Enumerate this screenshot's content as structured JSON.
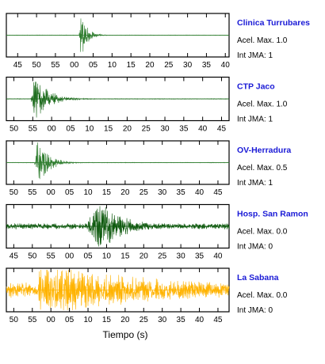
{
  "chart_data": {
    "type": "line",
    "xlabel": "Tiempo (s)",
    "series": [
      {
        "name": "Clinica Turrubares",
        "info1": "Acel. Max. 1.0",
        "info2": "Int JMA: 1",
        "color": "#2e7d2e",
        "x_start_sec": 42,
        "x_span_sec": 59,
        "tick_labels": [
          "45",
          "50",
          "55",
          "00",
          "05",
          "10",
          "15",
          "20",
          "25",
          "30",
          "35",
          "40"
        ],
        "burst_sec": 61.7,
        "amplitude": 1.0,
        "noise": 0.01,
        "decay_sec": 1.6,
        "onset_sec": 0.4
      },
      {
        "name": "CTP Jaco",
        "info1": "Acel. Max. 1.0",
        "info2": "Int JMA: 1",
        "color": "#1c6b1c",
        "x_start_sec": 48,
        "x_span_sec": 59,
        "tick_labels": [
          "50",
          "55",
          "00",
          "05",
          "10",
          "15",
          "20",
          "25",
          "30",
          "35",
          "40",
          "45"
        ],
        "burst_sec": 55.5,
        "amplitude": 1.0,
        "noise": 0.012,
        "decay_sec": 3.5,
        "onset_sec": 1.0
      },
      {
        "name": "OV-Herradura",
        "info1": "Acel. Max. 0.5",
        "info2": "Int JMA: 1",
        "color": "#2e7d2e",
        "x_start_sec": 48,
        "x_span_sec": 60,
        "tick_labels": [
          "50",
          "55",
          "00",
          "05",
          "10",
          "15",
          "20",
          "25",
          "30",
          "35",
          "40",
          "45"
        ],
        "burst_sec": 56.5,
        "amplitude": 0.5,
        "noise": 0.006,
        "decay_sec": 2.8,
        "onset_sec": 1.0
      },
      {
        "name": "Hosp. San Ramon",
        "info1": "Acel. Max. 0.0",
        "info2": "Int JMA: 0",
        "color": "#0f5a0f",
        "x_start_sec": 43,
        "x_span_sec": 60,
        "tick_labels": [
          "45",
          "50",
          "55",
          "00",
          "05",
          "10",
          "15",
          "20",
          "25",
          "30",
          "35",
          "40"
        ],
        "burst_sec": 68.0,
        "amplitude": 0.03,
        "noise": 0.0035,
        "decay_sec": 7.0,
        "onset_sec": 4.0
      },
      {
        "name": "La Sabana",
        "info1": "Acel. Max. 0.0",
        "info2": "Int JMA: 0",
        "color": "#ffb300",
        "x_start_sec": 48,
        "x_span_sec": 60,
        "tick_labels": [
          "50",
          "55",
          "00",
          "05",
          "10",
          "15",
          "20",
          "25",
          "30",
          "35",
          "40",
          "45"
        ],
        "burst_sec": 57.0,
        "amplitude": 0.03,
        "noise": 0.009,
        "decay_sec": 40.0,
        "onset_sec": 0.5
      }
    ]
  }
}
